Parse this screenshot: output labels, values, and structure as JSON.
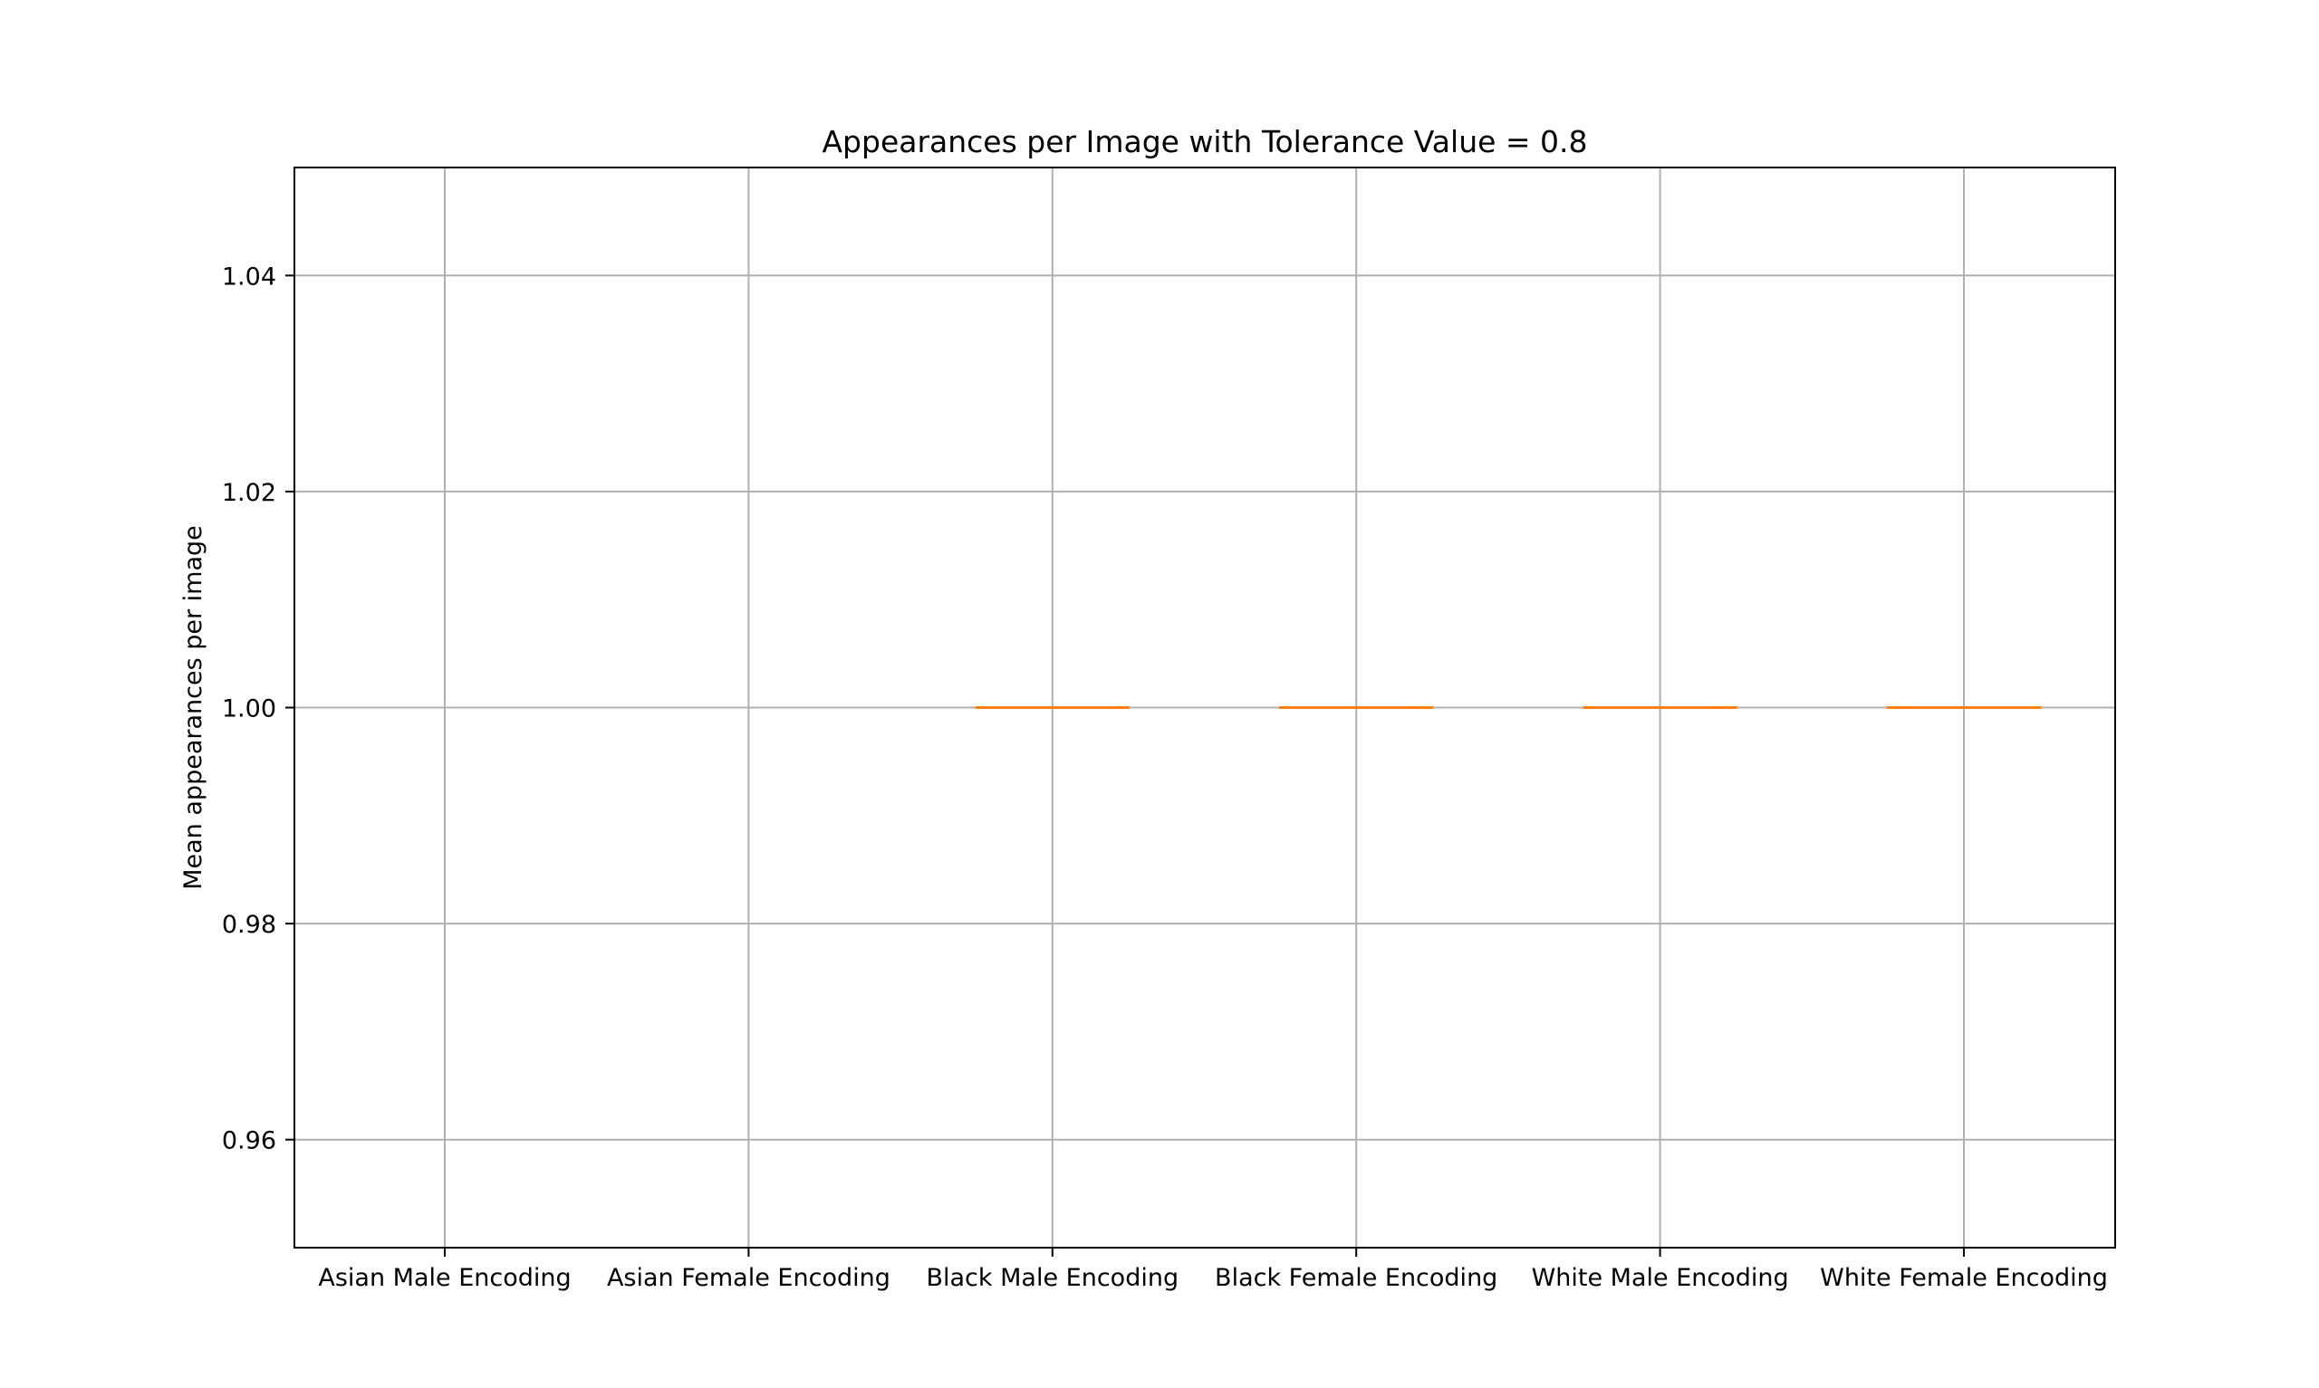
{
  "chart_data": {
    "type": "box",
    "title": "Appearances per Image with Tolerance Value = 0.8",
    "xlabel": "",
    "ylabel": "Mean appearances per image",
    "categories": [
      "Asian Male Encoding",
      "Asian Female Encoding",
      "Black Male Encoding",
      "Black Female Encoding",
      "White Male Encoding",
      "White Female Encoding"
    ],
    "medians": [
      null,
      null,
      1.0,
      1.0,
      1.0,
      1.0
    ],
    "ylim": [
      0.95,
      1.05
    ],
    "yticks": [
      0.96,
      0.98,
      1.0,
      1.02,
      1.04
    ],
    "ytick_labels": [
      "0.96",
      "0.98",
      "1.00",
      "1.02",
      "1.04"
    ],
    "grid": true,
    "colors": {
      "median": "#ff7f0e",
      "grid": "#b0b0b0",
      "axes": "#000000"
    }
  }
}
